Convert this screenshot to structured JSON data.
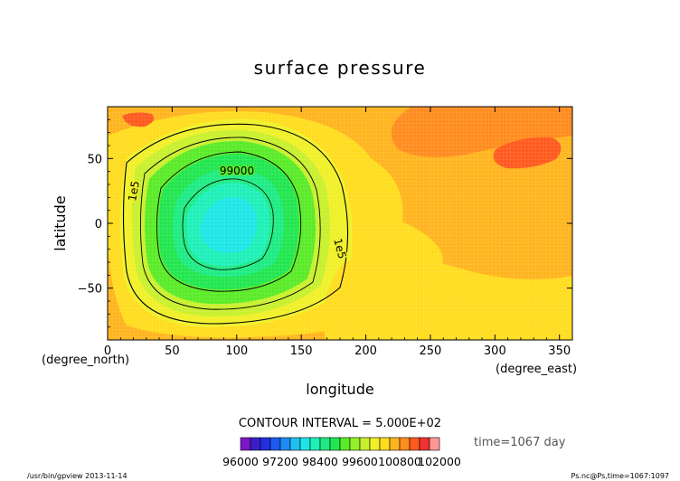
{
  "chart_data": {
    "type": "heatmap",
    "title": "surface pressure",
    "xlabel": "longitude",
    "ylabel": "latitude",
    "x_unit": "(degree_east)",
    "y_unit": "(degree_north)",
    "xlim": [
      0,
      360
    ],
    "ylim": [
      -90,
      90
    ],
    "x_ticks": [
      "0",
      "50",
      "100",
      "150",
      "200",
      "250",
      "300",
      "350"
    ],
    "y_ticks": [
      "50",
      "0",
      "−50"
    ],
    "contour_labels": [
      "99000",
      "1e5",
      "1e5"
    ],
    "contour_interval_text": "CONTOUR INTERVAL = 5.000E+02",
    "time_text": "time=1067 day",
    "colorbar": {
      "min": 96000,
      "max": 102000,
      "step": 400,
      "labels": [
        "96000",
        "97200",
        "98400",
        "99600",
        "100800",
        "102000"
      ],
      "colors": [
        "#7a18c8",
        "#3a1ec8",
        "#2030e0",
        "#1e5aee",
        "#1e8cf4",
        "#1ec0f2",
        "#1ee6e6",
        "#1ef0b8",
        "#1eeb84",
        "#22e650",
        "#5aeb28",
        "#96f028",
        "#c8f02d",
        "#f0f028",
        "#ffdc1e",
        "#ffb41e",
        "#ff8c1e",
        "#ff5a1e",
        "#f03232",
        "#ff9696"
      ]
    },
    "low_center": {
      "lon": 105,
      "lat": 5,
      "value": 98200
    },
    "footer_left": "/usr/bin/gpview  2013-11-14",
    "footer_right": "Ps.nc@Ps,time=1067:1097"
  }
}
